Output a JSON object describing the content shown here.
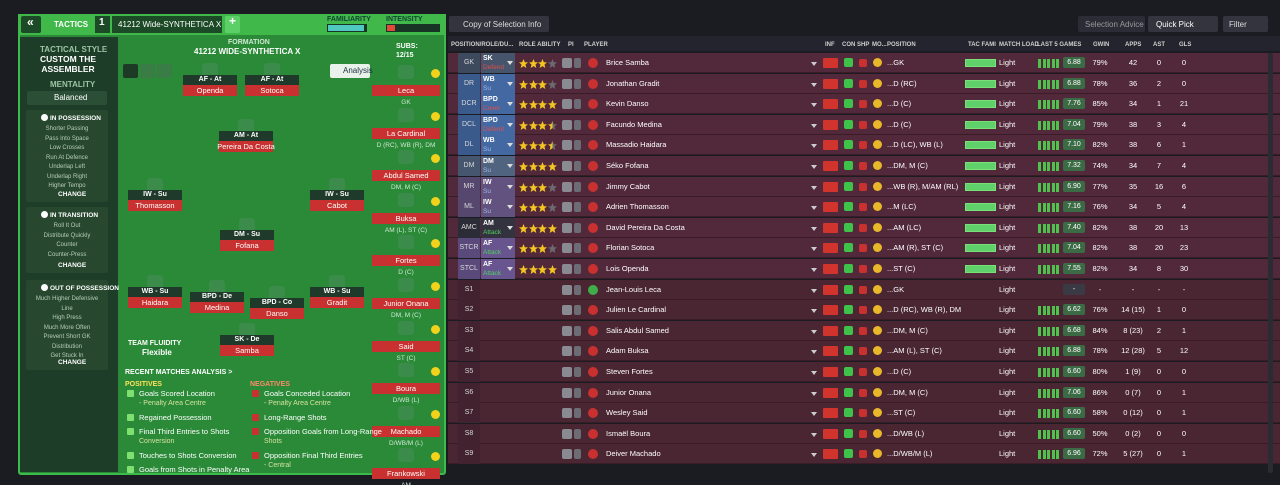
{
  "header": {
    "back": "«",
    "section": "TACTICS",
    "slot": "1",
    "tactic": "41212 Wide-SYNTHETICA X",
    "add": "+",
    "familiarity": "FAMILIARITY",
    "intensity": "INTENSITY"
  },
  "style_panel": {
    "label": "TACTICAL STYLE",
    "name": "CUSTOM THE ASSEMBLER",
    "mentality_label": "MENTALITY",
    "mentality": "Balanced",
    "groups": [
      {
        "title": "IN POSSESSION",
        "items": [
          "Shorter Passing",
          "Pass Into Space",
          "Low Crosses",
          "Run At Defence",
          "Underlap Left",
          "Underlap Right",
          "Higher Tempo"
        ],
        "button": "CHANGE"
      },
      {
        "title": "IN TRANSITION",
        "items": [
          "Roll It Out",
          "Distribute Quickly",
          "Counter",
          "Counter-Press"
        ],
        "button": "CHANGE"
      },
      {
        "title": "OUT OF POSSESSION",
        "items": [
          "Much Higher Defensive",
          "Line",
          "High Press",
          "Much More Often",
          "Prevent Short GK",
          "Distribution",
          "Get Stuck In"
        ],
        "button": "CHANGE"
      }
    ]
  },
  "pitch": {
    "formation_label": "FORMATION",
    "formation": "41212 WIDE-SYNTHETICA X",
    "subs_label": "SUBS:",
    "subs_count": "12/15",
    "analysis": "Analysis",
    "fluidity_label": "TEAM FLUIDITY",
    "fluidity": "Flexible",
    "players": [
      {
        "role": "AF - At",
        "name": "Openda"
      },
      {
        "role": "AF - At",
        "name": "Sotoca"
      },
      {
        "role": "AM - At",
        "name": "Pereira Da Costa"
      },
      {
        "role": "IW - Su",
        "name": "Thomasson"
      },
      {
        "role": "IW - Su",
        "name": "Cabot"
      },
      {
        "role": "DM - Su",
        "name": "Fofana"
      },
      {
        "role": "WB - Su",
        "name": "Haidara"
      },
      {
        "role": "BPD - De",
        "name": "Medina"
      },
      {
        "role": "BPD - Co",
        "name": "Danso"
      },
      {
        "role": "WB - Su",
        "name": "Gradit"
      },
      {
        "role": "SK - De",
        "name": "Samba"
      }
    ]
  },
  "subs": [
    {
      "name": "Leca",
      "position": "GK"
    },
    {
      "name": "La Cardinal",
      "position": "D (RC), WB (R), DM"
    },
    {
      "name": "Abdul Samed",
      "position": "DM, M (C)"
    },
    {
      "name": "Buksa",
      "position": "AM (L), ST (C)"
    },
    {
      "name": "Fortes",
      "position": "D (C)"
    },
    {
      "name": "Junior Onana",
      "position": "DM, M (C)"
    },
    {
      "name": "Said",
      "position": "ST (C)"
    },
    {
      "name": "Boura",
      "position": "D/WB (L)"
    },
    {
      "name": "Machado",
      "position": "D/WB/M (L)"
    },
    {
      "name": "Frankowski",
      "position": "AM"
    }
  ],
  "analysis": {
    "title": "RECENT MATCHES ANALYSIS >",
    "positives_label": "POSITIVES",
    "positives": [
      {
        "text": "Goals Scored Location",
        "detail": "- Penalty Area Centre"
      },
      {
        "text": "Regained Possession"
      },
      {
        "text": "Final Third Entries to Shots",
        "detail": "Conversion"
      },
      {
        "text": "Touches to Shots Conversion"
      },
      {
        "text": "Goals from Shots in Penalty Area"
      }
    ],
    "negatives_label": "NEGATIVES",
    "negatives": [
      {
        "text": "Goals Conceded Location",
        "detail": "- Penalty Area Centre"
      },
      {
        "text": "Long-Range Shots"
      },
      {
        "text": "Opposition Goals from Long-Range",
        "detail": "Shots"
      },
      {
        "text": "Opposition Final Third Entries",
        "detail": "- Central"
      }
    ]
  },
  "toolbar": {
    "view": "Copy of Selection Info",
    "advice": "Selection Advice",
    "quick_pick": "Quick Pick",
    "filter": "Filter"
  },
  "table": {
    "columns": [
      "POSITION/ROLE/DU...",
      "ROLE ABILITY",
      "PI",
      "PLAYER",
      "INF",
      "CON",
      "SHP",
      "MO...",
      "POSITION",
      "TAC FAMI",
      "MATCH LOAD",
      "LAST 5 GAMES",
      "GWIN",
      "APPS",
      "AST",
      "GLS"
    ],
    "rows": [
      {
        "slot": "GK",
        "role": "SK",
        "duty": "Defend",
        "slot_color": "#3d4a5e",
        "duty_color": "#e0504a",
        "role_ability": 3,
        "player": "Brice Samba",
        "position": "...GK",
        "load": "Light",
        "rating": "6.88",
        "gwin": "79%",
        "apps": "42",
        "ast": "0",
        "gls": "0"
      },
      {
        "slot": "DR",
        "role": "WB",
        "duty": "Su",
        "slot_color": "#3b5a8c",
        "duty_color": "#9fb8e8",
        "role_ability": 3,
        "player": "Jonathan Gradit",
        "position": "...D (RC)",
        "load": "Light",
        "rating": "6.88",
        "gwin": "78%",
        "apps": "36",
        "ast": "2",
        "gls": "0"
      },
      {
        "slot": "DCR",
        "role": "BPD",
        "duty": "Cover",
        "slot_color": "#3b5a8c",
        "duty_color": "#e0504a",
        "role_ability": 4,
        "player": "Kevin Danso",
        "position": "...D (C)",
        "load": "Light",
        "rating": "7.76",
        "gwin": "85%",
        "apps": "34",
        "ast": "1",
        "gls": "21"
      },
      {
        "slot": "DCL",
        "role": "BPD",
        "duty": "Defend",
        "slot_color": "#3b5a8c",
        "duty_color": "#e0504a",
        "role_ability": 3.5,
        "player": "Facundo Medina",
        "position": "...D (C)",
        "load": "Light",
        "rating": "7.04",
        "gwin": "79%",
        "apps": "38",
        "ast": "3",
        "gls": "4"
      },
      {
        "slot": "DL",
        "role": "WB",
        "duty": "Su",
        "slot_color": "#3b5a8c",
        "duty_color": "#9fb8e8",
        "role_ability": 3.5,
        "player": "Massadio Haidara",
        "position": "...D (LC), WB (L)",
        "load": "Light",
        "rating": "7.10",
        "gwin": "82%",
        "apps": "38",
        "ast": "6",
        "gls": "1"
      },
      {
        "slot": "DM",
        "role": "DM",
        "duty": "Su",
        "slot_color": "#46566e",
        "duty_color": "#9fb8e8",
        "role_ability": 4,
        "player": "Séko Fofana",
        "position": "...DM, M (C)",
        "load": "Light",
        "rating": "7.32",
        "gwin": "74%",
        "apps": "34",
        "ast": "7",
        "gls": "4"
      },
      {
        "slot": "MR",
        "role": "IW",
        "duty": "Su",
        "slot_color": "#55476e",
        "duty_color": "#9fb8e8",
        "role_ability": 3,
        "player": "Jimmy Cabot",
        "position": "...WB (R), M/AM (RL)",
        "load": "Light",
        "rating": "6.90",
        "gwin": "77%",
        "apps": "35",
        "ast": "16",
        "gls": "6"
      },
      {
        "slot": "ML",
        "role": "IW",
        "duty": "Su",
        "slot_color": "#55476e",
        "duty_color": "#9fb8e8",
        "role_ability": 3,
        "player": "Adrien Thomasson",
        "position": "...M (LC)",
        "load": "Light",
        "rating": "7.16",
        "gwin": "76%",
        "apps": "34",
        "ast": "5",
        "gls": "4"
      },
      {
        "slot": "AMC",
        "role": "AM",
        "duty": "Attack",
        "slot_color": "#2c2c38",
        "duty_color": "#4fd060",
        "role_ability": 4,
        "player": "David Pereira Da Costa",
        "position": "...AM (LC)",
        "load": "Light",
        "rating": "7.40",
        "gwin": "82%",
        "apps": "38",
        "ast": "20",
        "gls": "13"
      },
      {
        "slot": "STCR",
        "role": "AF",
        "duty": "Attack",
        "slot_color": "#5a4a7c",
        "duty_color": "#4fd060",
        "role_ability": 3,
        "player": "Florian Sotoca",
        "position": "...AM (R), ST (C)",
        "load": "Light",
        "rating": "7.04",
        "gwin": "82%",
        "apps": "38",
        "ast": "20",
        "gls": "23"
      },
      {
        "slot": "STCL",
        "role": "AF",
        "duty": "Attack",
        "slot_color": "#5a4a7c",
        "duty_color": "#4fd060",
        "role_ability": 4,
        "player": "Lois Openda",
        "position": "...ST (C)",
        "load": "Light",
        "rating": "7.55",
        "gwin": "82%",
        "apps": "34",
        "ast": "8",
        "gls": "30"
      },
      {
        "slot": "S1",
        "player": "Jean-Louis Leca",
        "position": "...GK",
        "load": "Light",
        "rating": "-",
        "gwin": "-",
        "apps": "-",
        "ast": "-",
        "gls": "-"
      },
      {
        "slot": "S2",
        "player": "Julien Le Cardinal",
        "position": "...D (RC), WB (R), DM",
        "load": "Light",
        "rating": "6.62",
        "gwin": "76%",
        "apps": "14 (15)",
        "ast": "1",
        "gls": "0"
      },
      {
        "slot": "S3",
        "player": "Salis Abdul Samed",
        "position": "...DM, M (C)",
        "load": "Light",
        "rating": "6.68",
        "gwin": "84%",
        "apps": "8 (23)",
        "ast": "2",
        "gls": "1"
      },
      {
        "slot": "S4",
        "player": "Adam Buksa",
        "position": "...AM (L), ST (C)",
        "load": "Light",
        "rating": "6.88",
        "gwin": "78%",
        "apps": "12 (28)",
        "ast": "5",
        "gls": "12"
      },
      {
        "slot": "S5",
        "player": "Steven Fortes",
        "position": "...D (C)",
        "load": "Light",
        "rating": "6.60",
        "gwin": "80%",
        "apps": "1 (9)",
        "ast": "0",
        "gls": "0"
      },
      {
        "slot": "S6",
        "player": "Junior Onana",
        "position": "...DM, M (C)",
        "load": "Light",
        "rating": "7.06",
        "gwin": "86%",
        "apps": "0 (7)",
        "ast": "0",
        "gls": "1"
      },
      {
        "slot": "S7",
        "player": "Wesley Said",
        "position": "...ST (C)",
        "load": "Light",
        "rating": "6.60",
        "gwin": "58%",
        "apps": "0 (12)",
        "ast": "0",
        "gls": "1"
      },
      {
        "slot": "S8",
        "player": "Ismaël Boura",
        "position": "...D/WB (L)",
        "load": "Light",
        "rating": "6.60",
        "gwin": "50%",
        "apps": "0 (2)",
        "ast": "0",
        "gls": "0"
      },
      {
        "slot": "S9",
        "player": "Deiver Machado",
        "position": "...D/WB/M (L)",
        "load": "Light",
        "rating": "6.96",
        "gwin": "72%",
        "apps": "5 (27)",
        "ast": "0",
        "gls": "1"
      }
    ]
  }
}
